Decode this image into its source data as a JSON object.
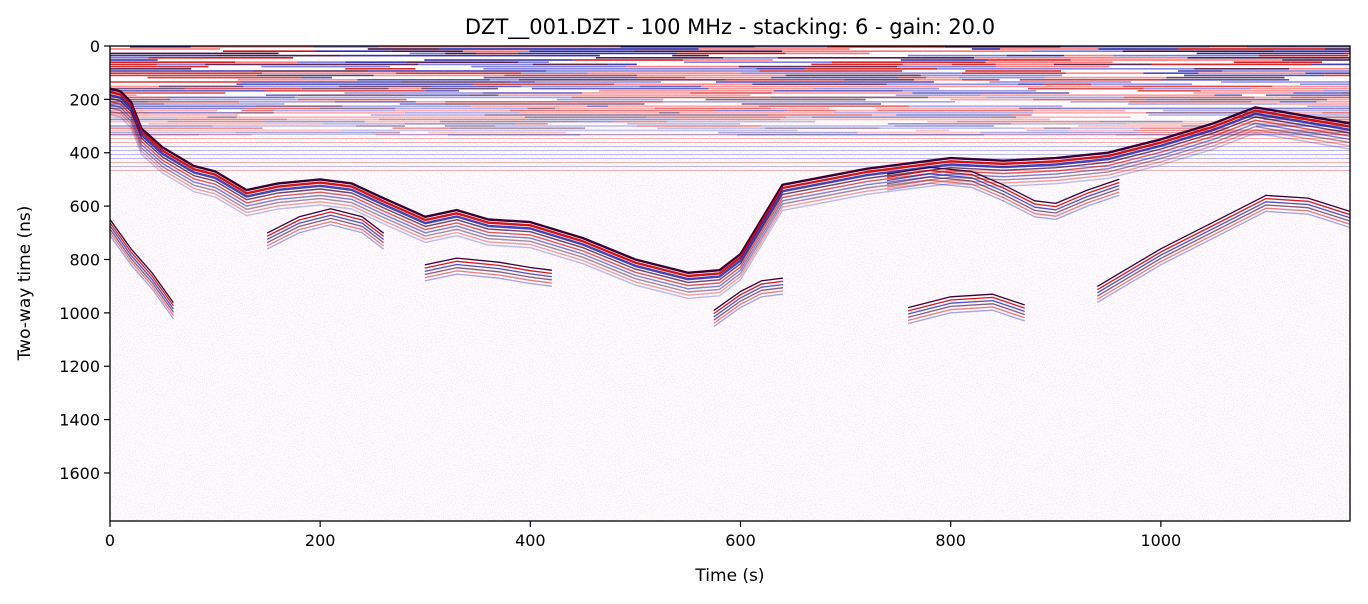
{
  "chart_data": {
    "type": "heatmap",
    "title": "DZT__001.DZT - 100 MHz - stacking: 6 - gain: 20.0",
    "xlabel": "Time (s)",
    "ylabel": "Two-way time (ns)",
    "xlim": [
      0,
      1180
    ],
    "ylim": [
      1780,
      0
    ],
    "y_inverted": true,
    "grid": false,
    "colormap": "seismic",
    "colors": {
      "positive": "#cc0000",
      "negative": "#1a1aa6",
      "dark": "#3a0033",
      "zero": "#ffffff"
    },
    "xticks": [
      0,
      200,
      400,
      600,
      800,
      1000
    ],
    "yticks": [
      0,
      200,
      400,
      600,
      800,
      1000,
      1200,
      1400,
      1600
    ],
    "horizontal_banding_ns": [
      0,
      330
    ],
    "reflectors": [
      {
        "name": "primary",
        "points": [
          [
            0,
            160
          ],
          [
            10,
            170
          ],
          [
            20,
            210
          ],
          [
            30,
            310
          ],
          [
            50,
            380
          ],
          [
            80,
            450
          ],
          [
            100,
            470
          ],
          [
            130,
            540
          ],
          [
            160,
            515
          ],
          [
            200,
            500
          ],
          [
            230,
            515
          ],
          [
            260,
            570
          ],
          [
            300,
            640
          ],
          [
            330,
            615
          ],
          [
            360,
            650
          ],
          [
            400,
            660
          ],
          [
            450,
            720
          ],
          [
            500,
            800
          ],
          [
            550,
            850
          ],
          [
            580,
            840
          ],
          [
            600,
            780
          ],
          [
            620,
            650
          ],
          [
            640,
            520
          ],
          [
            680,
            490
          ],
          [
            720,
            460
          ],
          [
            760,
            440
          ],
          [
            800,
            420
          ],
          [
            850,
            430
          ],
          [
            900,
            420
          ],
          [
            950,
            400
          ],
          [
            1000,
            350
          ],
          [
            1050,
            290
          ],
          [
            1090,
            230
          ],
          [
            1120,
            250
          ],
          [
            1180,
            290
          ]
        ]
      },
      {
        "name": "hyperbola-200",
        "points": [
          [
            150,
            700
          ],
          [
            180,
            640
          ],
          [
            210,
            610
          ],
          [
            240,
            640
          ],
          [
            260,
            700
          ]
        ]
      },
      {
        "name": "hyperbola-330",
        "points": [
          [
            300,
            820
          ],
          [
            330,
            795
          ],
          [
            370,
            810
          ],
          [
            400,
            830
          ],
          [
            420,
            840
          ]
        ]
      },
      {
        "name": "hyperbola-780",
        "points": [
          [
            740,
            480
          ],
          [
            780,
            455
          ],
          [
            820,
            470
          ],
          [
            850,
            520
          ]
        ]
      },
      {
        "name": "hyperbola-880",
        "points": [
          [
            850,
            520
          ],
          [
            880,
            580
          ],
          [
            900,
            590
          ],
          [
            930,
            540
          ],
          [
            960,
            500
          ]
        ]
      },
      {
        "name": "dipping-east",
        "points": [
          [
            940,
            900
          ],
          [
            1000,
            760
          ],
          [
            1060,
            640
          ],
          [
            1100,
            560
          ],
          [
            1140,
            570
          ],
          [
            1180,
            620
          ]
        ]
      },
      {
        "name": "deep-west",
        "points": [
          [
            0,
            650
          ],
          [
            20,
            760
          ],
          [
            40,
            850
          ],
          [
            60,
            960
          ]
        ]
      },
      {
        "name": "deep-600",
        "points": [
          [
            575,
            990
          ],
          [
            600,
            920
          ],
          [
            620,
            880
          ],
          [
            640,
            870
          ]
        ]
      },
      {
        "name": "deep-800",
        "points": [
          [
            760,
            980
          ],
          [
            800,
            940
          ],
          [
            840,
            930
          ],
          [
            870,
            970
          ]
        ]
      }
    ]
  }
}
